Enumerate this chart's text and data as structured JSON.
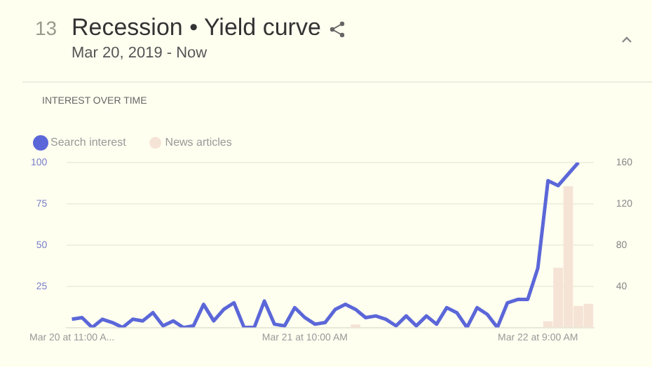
{
  "chart_data": {
    "type": "line",
    "title": "Recession • Yield curve",
    "subtitle": "Mar 20, 2019 - Now",
    "annotations": [
      "13",
      "INTEREST OVER TIME"
    ],
    "categories": [
      "Mar 20 at 11:00 A...",
      null,
      null,
      null,
      null,
      null,
      null,
      null,
      null,
      null,
      null,
      null,
      null,
      null,
      null,
      null,
      null,
      null,
      null,
      null,
      null,
      null,
      null,
      "Mar 21 at 10:00 AM",
      null,
      null,
      null,
      null,
      null,
      null,
      null,
      null,
      null,
      null,
      null,
      null,
      null,
      null,
      null,
      null,
      null,
      null,
      null,
      null,
      null,
      null,
      "Mar 22 at 9:00 AM",
      null,
      null,
      null,
      null,
      null
    ],
    "series": [
      {
        "name": "Search interest",
        "color": "#5b67d8",
        "values": [
          5,
          6,
          0,
          5,
          3,
          0,
          5,
          4,
          9,
          1,
          4,
          0,
          1,
          14,
          4,
          11,
          15,
          0,
          0,
          16,
          2,
          1,
          12,
          6,
          2,
          3,
          11,
          14,
          11,
          6,
          7,
          5,
          1,
          7,
          1,
          7,
          2,
          12,
          9,
          0,
          12,
          8,
          0,
          15,
          17,
          17,
          36,
          89,
          86,
          93,
          100,
          null
        ]
      },
      {
        "name": "News articles",
        "type": "bar",
        "axis": "y2",
        "color": "#f5e4d6",
        "values": [
          0,
          0,
          0,
          0,
          0,
          0,
          0,
          0,
          0,
          0,
          0,
          0,
          0,
          0,
          0,
          0,
          0,
          0,
          0,
          0,
          0,
          0,
          0,
          0,
          0,
          0,
          0,
          0,
          3,
          0,
          0,
          0,
          0,
          0,
          0,
          0,
          0,
          0,
          0,
          0,
          0,
          0,
          0,
          0,
          null,
          null,
          0,
          6,
          58,
          137,
          21,
          23
        ]
      }
    ],
    "ylim": [
      0,
      100
    ],
    "yticks": [
      25,
      50,
      75,
      100
    ],
    "y2lim": [
      0,
      160
    ],
    "y2ticks": [
      40,
      80,
      120,
      160
    ],
    "grid": "y",
    "legend": "top left",
    "marker": "none",
    "line_style": "solid"
  }
}
